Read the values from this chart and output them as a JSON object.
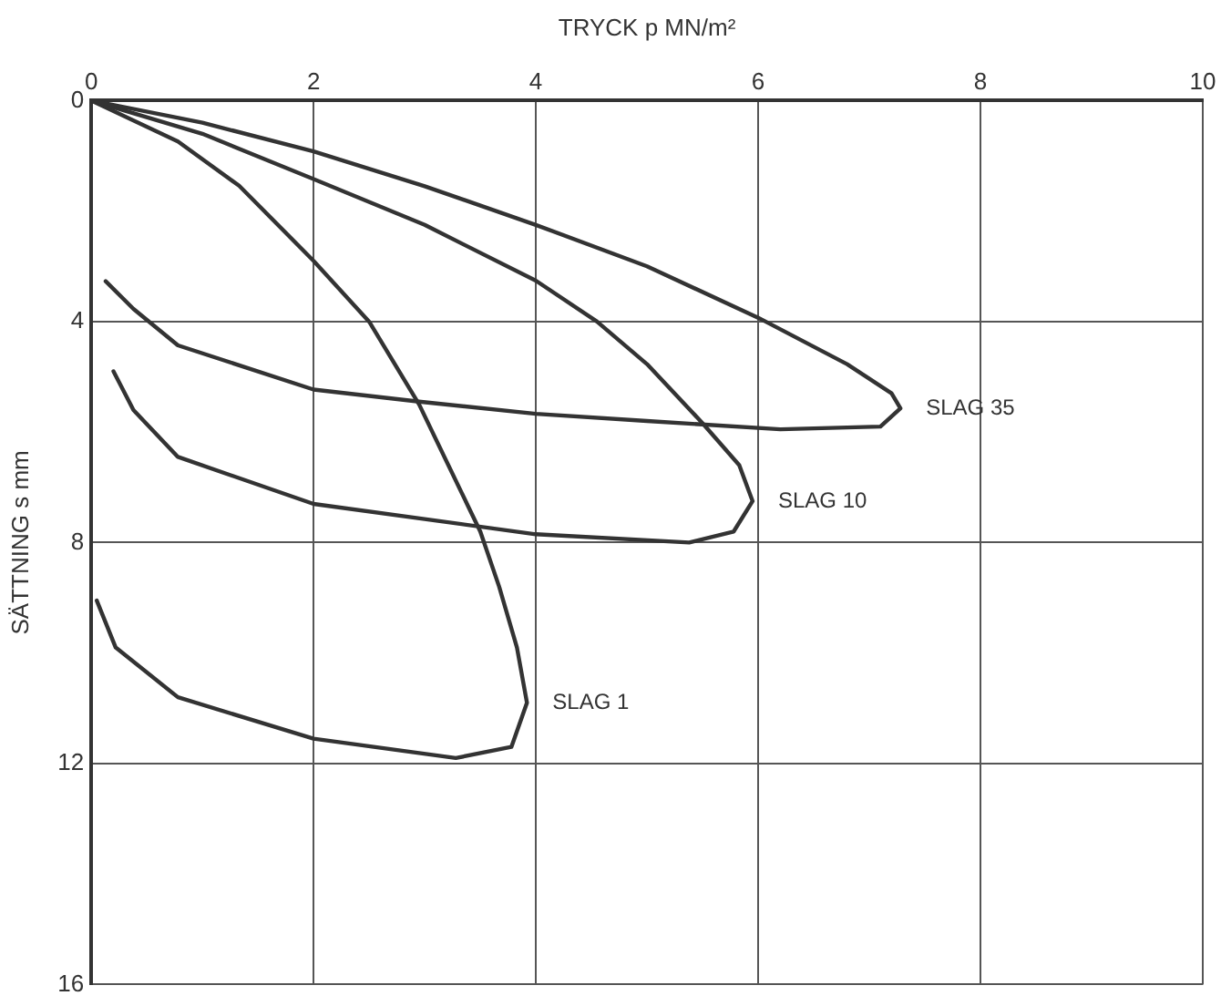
{
  "chart_data": {
    "type": "line",
    "xlabel": "TRYCK p MN/m²",
    "ylabel": "SÄTTNING s mm",
    "xlim": [
      0,
      10
    ],
    "xticks": [
      0,
      2,
      4,
      6,
      8,
      10
    ],
    "ylim": [
      16,
      0
    ],
    "yticks": [
      0,
      4,
      8,
      12,
      16
    ],
    "grid": true,
    "legend": false,
    "marker": "none",
    "line_style": "solid",
    "series": [
      {
        "name": "SLAG 35",
        "color": "#333333",
        "x": [
          0,
          1,
          2,
          3,
          4,
          5,
          6,
          6.8,
          7.2,
          7.28,
          7.1,
          6.2,
          5,
          4,
          2.95,
          2,
          0.78,
          0.38,
          0.13
        ],
        "values": [
          0,
          0.4,
          0.92,
          1.55,
          2.25,
          3.0,
          3.93,
          4.77,
          5.3,
          5.57,
          5.9,
          5.95,
          5.8,
          5.67,
          5.45,
          5.23,
          4.43,
          3.77,
          3.27
        ]
      },
      {
        "name": "SLAG 10",
        "color": "#333333",
        "x": [
          0,
          1,
          2,
          3,
          4,
          4.55,
          5,
          5.5,
          5.83,
          5.95,
          5.78,
          5.38,
          4,
          2,
          0.78,
          0.38,
          0.2
        ],
        "values": [
          0,
          0.6,
          1.42,
          2.25,
          3.26,
          4.0,
          4.77,
          5.84,
          6.6,
          7.25,
          7.8,
          8.0,
          7.85,
          7.3,
          6.45,
          5.6,
          4.9
        ]
      },
      {
        "name": "SLAG 1",
        "color": "#333333",
        "x": [
          0,
          0.78,
          1.33,
          2,
          2.5,
          2.95,
          3.5,
          3.67,
          3.83,
          3.92,
          3.78,
          3.28,
          2,
          0.78,
          0.22,
          0.05
        ],
        "values": [
          0,
          0.74,
          1.54,
          2.9,
          4,
          5.5,
          7.8,
          8.8,
          9.9,
          10.9,
          11.7,
          11.9,
          11.55,
          10.8,
          9.9,
          9.05
        ]
      }
    ]
  }
}
